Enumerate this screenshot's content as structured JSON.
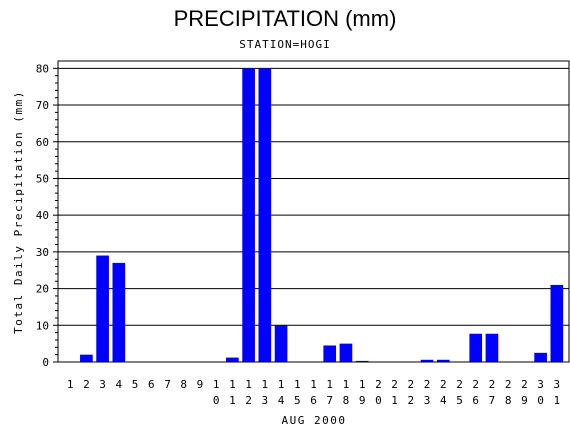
{
  "chart_data": {
    "type": "bar",
    "title": "PRECIPITATION (mm)",
    "subtitle": "STATION=HOGI",
    "xlabel": "AUG 2000",
    "ylabel": "Total Daily Precipitation (mm)",
    "ylim": [
      0,
      82
    ],
    "yticks": [
      0,
      10,
      20,
      30,
      40,
      50,
      60,
      70,
      80
    ],
    "grid": true,
    "bar_color": "#0000ff",
    "categories": [
      "1",
      "2",
      "3",
      "4",
      "5",
      "6",
      "7",
      "8",
      "9",
      "10",
      "11",
      "12",
      "13",
      "14",
      "15",
      "16",
      "17",
      "18",
      "19",
      "20",
      "21",
      "22",
      "23",
      "24",
      "25",
      "26",
      "27",
      "28",
      "29",
      "30",
      "31"
    ],
    "values": [
      0,
      2,
      29,
      27,
      0,
      0,
      0,
      0,
      0,
      0,
      1.2,
      80,
      80,
      10,
      0,
      0,
      4.5,
      5,
      0.3,
      0,
      0,
      0,
      0.6,
      0.6,
      0,
      7.7,
      7.7,
      0,
      0,
      2.5,
      21
    ]
  }
}
